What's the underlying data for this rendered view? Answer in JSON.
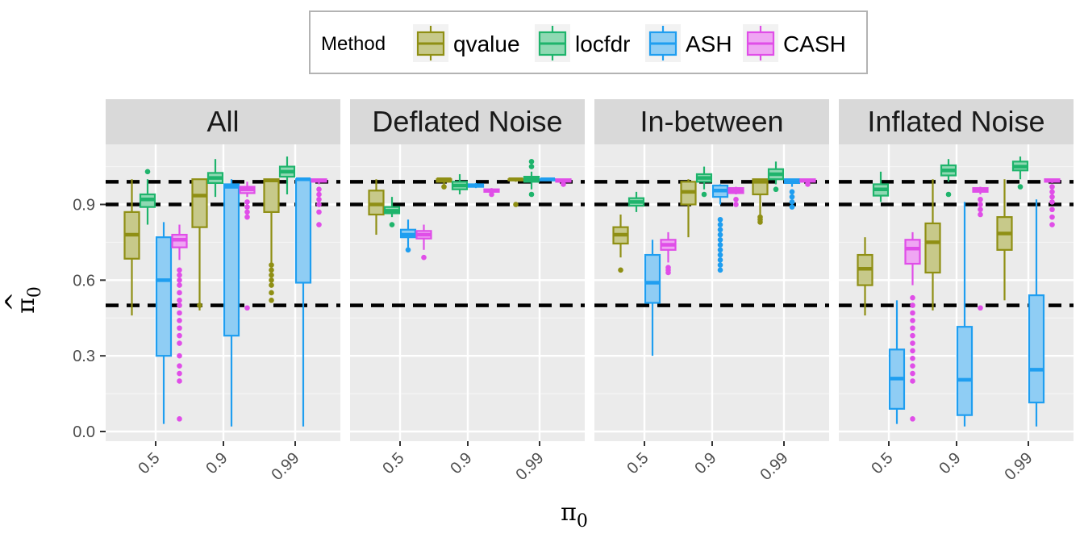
{
  "chart_data": {
    "type": "boxplot",
    "facets": [
      "All",
      "Deflated Noise",
      "In-between",
      "Inflated Noise"
    ],
    "categories": [
      "0.5",
      "0.9",
      "0.99"
    ],
    "xlabel": {
      "main": "π",
      "sub": "0"
    },
    "ylabel": {
      "main": "π",
      "sub": "0",
      "hat": "^"
    },
    "ylim": [
      -0.03,
      1.1
    ],
    "yticks": [
      "0.0",
      "0.3",
      "0.6",
      "0.9"
    ],
    "ytick_values": [
      0.0,
      0.3,
      0.6,
      0.9
    ],
    "reference_lines": [
      0.5,
      0.9,
      0.99
    ],
    "legend": {
      "title": "Method",
      "position": "top"
    },
    "methods": [
      {
        "name": "qvalue",
        "color": "#8f8f14",
        "fill": "#c7c98a"
      },
      {
        "name": "locfdr",
        "color": "#1fb46c",
        "fill": "#8fd9b3"
      },
      {
        "name": "ASH",
        "color": "#1f9ef0",
        "fill": "#8fcdf4"
      },
      {
        "name": "CASH",
        "color": "#e04ee8",
        "fill": "#efa6f3"
      }
    ],
    "boxes": [
      {
        "facet": 0,
        "cat": 0,
        "method": 0,
        "wlo": 0.46,
        "q1": 0.685,
        "med": 0.78,
        "q3": 0.87,
        "whi": 1.0,
        "outliers": []
      },
      {
        "facet": 0,
        "cat": 0,
        "method": 1,
        "wlo": 0.82,
        "q1": 0.89,
        "med": 0.92,
        "q3": 0.94,
        "whi": 1.0,
        "outliers": [
          1.03
        ]
      },
      {
        "facet": 0,
        "cat": 0,
        "method": 2,
        "wlo": 0.03,
        "q1": 0.3,
        "med": 0.6,
        "q3": 0.77,
        "whi": 0.83,
        "outliers": []
      },
      {
        "facet": 0,
        "cat": 0,
        "method": 3,
        "wlo": 0.68,
        "q1": 0.73,
        "med": 0.76,
        "q3": 0.78,
        "whi": 0.82,
        "outliers": [
          0.64,
          0.62,
          0.6,
          0.58,
          0.55,
          0.52,
          0.5,
          0.47,
          0.44,
          0.41,
          0.38,
          0.35,
          0.3,
          0.26,
          0.23,
          0.2,
          0.05
        ]
      },
      {
        "facet": 0,
        "cat": 1,
        "method": 0,
        "wlo": 0.48,
        "q1": 0.81,
        "med": 0.935,
        "q3": 1.0,
        "whi": 1.0,
        "outliers": [
          0.5
        ]
      },
      {
        "facet": 0,
        "cat": 1,
        "method": 1,
        "wlo": 0.93,
        "q1": 0.985,
        "med": 1.005,
        "q3": 1.025,
        "whi": 1.08,
        "outliers": []
      },
      {
        "facet": 0,
        "cat": 1,
        "method": 2,
        "wlo": 0.02,
        "q1": 0.38,
        "med": 0.97,
        "q3": 0.98,
        "whi": 1.0,
        "outliers": []
      },
      {
        "facet": 0,
        "cat": 1,
        "method": 3,
        "wlo": 0.93,
        "q1": 0.945,
        "med": 0.96,
        "q3": 0.97,
        "whi": 0.99,
        "outliers": [
          0.91,
          0.89,
          0.87,
          0.85,
          0.49
        ]
      },
      {
        "facet": 0,
        "cat": 2,
        "method": 0,
        "wlo": 0.67,
        "q1": 0.87,
        "med": 0.995,
        "q3": 1.0,
        "whi": 1.0,
        "outliers": [
          0.66,
          0.64,
          0.62,
          0.6,
          0.58,
          0.55,
          0.52
        ]
      },
      {
        "facet": 0,
        "cat": 2,
        "method": 1,
        "wlo": 0.94,
        "q1": 1.01,
        "med": 1.03,
        "q3": 1.05,
        "whi": 1.09,
        "outliers": []
      },
      {
        "facet": 0,
        "cat": 2,
        "method": 2,
        "wlo": 0.02,
        "q1": 0.59,
        "med": 1.0,
        "q3": 1.0,
        "whi": 1.0,
        "outliers": []
      },
      {
        "facet": 0,
        "cat": 2,
        "method": 3,
        "wlo": 0.98,
        "q1": 0.99,
        "med": 0.995,
        "q3": 1.0,
        "whi": 1.0,
        "outliers": [
          0.96,
          0.94,
          0.92,
          0.9,
          0.87,
          0.82
        ]
      },
      {
        "facet": 1,
        "cat": 0,
        "method": 0,
        "wlo": 0.78,
        "q1": 0.86,
        "med": 0.9,
        "q3": 0.955,
        "whi": 1.0,
        "outliers": []
      },
      {
        "facet": 1,
        "cat": 0,
        "method": 1,
        "wlo": 0.85,
        "q1": 0.865,
        "med": 0.875,
        "q3": 0.89,
        "whi": 0.93,
        "outliers": [
          0.82
        ]
      },
      {
        "facet": 1,
        "cat": 0,
        "method": 2,
        "wlo": 0.73,
        "q1": 0.77,
        "med": 0.78,
        "q3": 0.8,
        "whi": 0.84,
        "outliers": [
          0.72
        ]
      },
      {
        "facet": 1,
        "cat": 0,
        "method": 3,
        "wlo": 0.72,
        "q1": 0.765,
        "med": 0.78,
        "q3": 0.795,
        "whi": 0.82,
        "outliers": [
          0.69
        ]
      },
      {
        "facet": 1,
        "cat": 1,
        "method": 0,
        "wlo": 0.98,
        "q1": 0.99,
        "med": 1.0,
        "q3": 1.0,
        "whi": 1.0,
        "outliers": [
          0.97
        ]
      },
      {
        "facet": 1,
        "cat": 1,
        "method": 1,
        "wlo": 0.94,
        "q1": 0.96,
        "med": 0.975,
        "q3": 0.99,
        "whi": 1.02,
        "outliers": []
      },
      {
        "facet": 1,
        "cat": 1,
        "method": 2,
        "wlo": 0.965,
        "q1": 0.97,
        "med": 0.975,
        "q3": 0.98,
        "whi": 0.985,
        "outliers": []
      },
      {
        "facet": 1,
        "cat": 1,
        "method": 3,
        "wlo": 0.945,
        "q1": 0.95,
        "med": 0.955,
        "q3": 0.96,
        "whi": 0.965,
        "outliers": [
          0.94
        ]
      },
      {
        "facet": 1,
        "cat": 2,
        "method": 0,
        "wlo": 0.99,
        "q1": 0.995,
        "med": 1.0,
        "q3": 1.0,
        "whi": 1.0,
        "outliers": [
          0.9
        ]
      },
      {
        "facet": 1,
        "cat": 2,
        "method": 1,
        "wlo": 0.96,
        "q1": 0.99,
        "med": 1.0,
        "q3": 1.01,
        "whi": 1.03,
        "outliers": [
          1.05,
          1.07,
          0.94
        ]
      },
      {
        "facet": 1,
        "cat": 2,
        "method": 2,
        "wlo": 0.995,
        "q1": 0.997,
        "med": 1.0,
        "q3": 1.0,
        "whi": 1.0,
        "outliers": []
      },
      {
        "facet": 1,
        "cat": 2,
        "method": 3,
        "wlo": 0.985,
        "q1": 0.99,
        "med": 0.995,
        "q3": 1.0,
        "whi": 1.0,
        "outliers": [
          0.98
        ]
      },
      {
        "facet": 2,
        "cat": 0,
        "method": 0,
        "wlo": 0.69,
        "q1": 0.745,
        "med": 0.78,
        "q3": 0.81,
        "whi": 0.86,
        "outliers": [
          0.64
        ]
      },
      {
        "facet": 2,
        "cat": 0,
        "method": 1,
        "wlo": 0.87,
        "q1": 0.895,
        "med": 0.91,
        "q3": 0.925,
        "whi": 0.95,
        "outliers": []
      },
      {
        "facet": 2,
        "cat": 0,
        "method": 2,
        "wlo": 0.3,
        "q1": 0.51,
        "med": 0.59,
        "q3": 0.7,
        "whi": 0.76,
        "outliers": []
      },
      {
        "facet": 2,
        "cat": 0,
        "method": 3,
        "wlo": 0.67,
        "q1": 0.72,
        "med": 0.74,
        "q3": 0.76,
        "whi": 0.79,
        "outliers": [
          0.65,
          0.64,
          0.63
        ]
      },
      {
        "facet": 2,
        "cat": 1,
        "method": 0,
        "wlo": 0.77,
        "q1": 0.9,
        "med": 0.95,
        "q3": 0.99,
        "whi": 1.0,
        "outliers": []
      },
      {
        "facet": 2,
        "cat": 1,
        "method": 1,
        "wlo": 0.96,
        "q1": 0.99,
        "med": 1.005,
        "q3": 1.02,
        "whi": 1.05,
        "outliers": [
          0.94
        ]
      },
      {
        "facet": 2,
        "cat": 1,
        "method": 2,
        "wlo": 0.9,
        "q1": 0.93,
        "med": 0.955,
        "q3": 0.975,
        "whi": 0.98,
        "outliers": [
          0.84,
          0.82,
          0.8,
          0.78,
          0.76,
          0.74,
          0.72,
          0.7,
          0.68,
          0.66,
          0.64
        ]
      },
      {
        "facet": 2,
        "cat": 1,
        "method": 3,
        "wlo": 0.94,
        "q1": 0.945,
        "med": 0.955,
        "q3": 0.965,
        "whi": 0.97,
        "outliers": [
          0.92,
          0.9
        ]
      },
      {
        "facet": 2,
        "cat": 2,
        "method": 0,
        "wlo": 0.86,
        "q1": 0.94,
        "med": 0.99,
        "q3": 1.0,
        "whi": 1.0,
        "outliers": [
          0.85,
          0.84,
          0.83
        ]
      },
      {
        "facet": 2,
        "cat": 2,
        "method": 1,
        "wlo": 0.98,
        "q1": 1.0,
        "med": 1.02,
        "q3": 1.04,
        "whi": 1.07,
        "outliers": [
          0.96
        ]
      },
      {
        "facet": 2,
        "cat": 2,
        "method": 2,
        "wlo": 0.97,
        "q1": 0.985,
        "med": 0.99,
        "q3": 1.0,
        "whi": 1.0,
        "outliers": [
          0.95,
          0.93,
          0.91,
          0.89
        ]
      },
      {
        "facet": 2,
        "cat": 2,
        "method": 3,
        "wlo": 0.985,
        "q1": 0.99,
        "med": 0.995,
        "q3": 1.0,
        "whi": 1.0,
        "outliers": [
          0.98
        ]
      },
      {
        "facet": 3,
        "cat": 0,
        "method": 0,
        "wlo": 0.46,
        "q1": 0.58,
        "med": 0.645,
        "q3": 0.7,
        "whi": 0.77,
        "outliers": []
      },
      {
        "facet": 3,
        "cat": 0,
        "method": 1,
        "wlo": 0.91,
        "q1": 0.935,
        "med": 0.96,
        "q3": 0.98,
        "whi": 1.03,
        "outliers": []
      },
      {
        "facet": 3,
        "cat": 0,
        "method": 2,
        "wlo": 0.03,
        "q1": 0.09,
        "med": 0.21,
        "q3": 0.325,
        "whi": 0.52,
        "outliers": []
      },
      {
        "facet": 3,
        "cat": 0,
        "method": 3,
        "wlo": 0.58,
        "q1": 0.665,
        "med": 0.725,
        "q3": 0.76,
        "whi": 0.79,
        "outliers": [
          0.53,
          0.5,
          0.47,
          0.44,
          0.41,
          0.38,
          0.35,
          0.32,
          0.29,
          0.26,
          0.23,
          0.2,
          0.05
        ]
      },
      {
        "facet": 3,
        "cat": 1,
        "method": 0,
        "wlo": 0.48,
        "q1": 0.63,
        "med": 0.75,
        "q3": 0.825,
        "whi": 1.0,
        "outliers": []
      },
      {
        "facet": 3,
        "cat": 1,
        "method": 1,
        "wlo": 0.99,
        "q1": 1.015,
        "med": 1.035,
        "q3": 1.055,
        "whi": 1.08,
        "outliers": [
          0.94
        ]
      },
      {
        "facet": 3,
        "cat": 1,
        "method": 2,
        "wlo": 0.02,
        "q1": 0.065,
        "med": 0.205,
        "q3": 0.415,
        "whi": 0.91,
        "outliers": []
      },
      {
        "facet": 3,
        "cat": 1,
        "method": 3,
        "wlo": 0.94,
        "q1": 0.95,
        "med": 0.955,
        "q3": 0.965,
        "whi": 0.97,
        "outliers": [
          0.92,
          0.9,
          0.88,
          0.86,
          0.49
        ]
      },
      {
        "facet": 3,
        "cat": 2,
        "method": 0,
        "wlo": 0.52,
        "q1": 0.72,
        "med": 0.785,
        "q3": 0.85,
        "whi": 1.0,
        "outliers": []
      },
      {
        "facet": 3,
        "cat": 2,
        "method": 1,
        "wlo": 1.0,
        "q1": 1.035,
        "med": 1.05,
        "q3": 1.07,
        "whi": 1.09,
        "outliers": [
          0.97
        ]
      },
      {
        "facet": 3,
        "cat": 2,
        "method": 2,
        "wlo": 0.02,
        "q1": 0.115,
        "med": 0.245,
        "q3": 0.54,
        "whi": 0.92,
        "outliers": []
      },
      {
        "facet": 3,
        "cat": 2,
        "method": 3,
        "wlo": 0.985,
        "q1": 0.99,
        "med": 0.995,
        "q3": 1.0,
        "whi": 1.0,
        "outliers": [
          0.97,
          0.95,
          0.93,
          0.91,
          0.88,
          0.85,
          0.82
        ]
      }
    ]
  }
}
